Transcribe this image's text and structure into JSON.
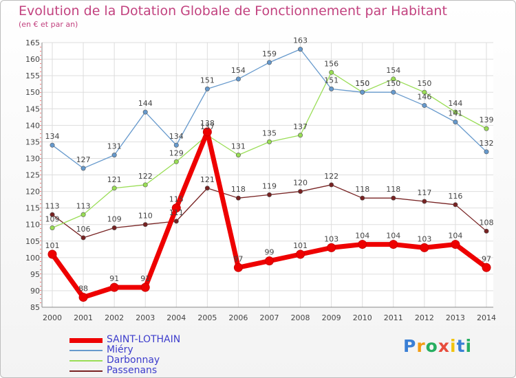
{
  "chart_data": {
    "type": "line",
    "title": "Evolution de la Dotation Globale de Fonctionnement par Habitant",
    "subtitle": "(en € et par an)",
    "x": [
      "2000",
      "2001",
      "2002",
      "2003",
      "2004",
      "2005",
      "2006",
      "2007",
      "2008",
      "2009",
      "2010",
      "2011",
      "2012",
      "2013",
      "2014"
    ],
    "ylim": [
      85,
      165
    ],
    "yticks": [
      85,
      90,
      95,
      100,
      105,
      110,
      115,
      120,
      125,
      130,
      135,
      140,
      145,
      150,
      155,
      160,
      165
    ],
    "grid": true,
    "legend_position": "bottom-left",
    "series": [
      {
        "name": "SAINT-LOTHAIN",
        "color": "#ee0000",
        "values": [
          101,
          88,
          91,
          91,
          115,
          138,
          97,
          99,
          101,
          103,
          104,
          104,
          103,
          104,
          97
        ]
      },
      {
        "name": "Miéry",
        "color": "#6699cc",
        "values": [
          134,
          127,
          131,
          144,
          134,
          151,
          154,
          159,
          163,
          151,
          150,
          150,
          146,
          141,
          132
        ]
      },
      {
        "name": "Darbonnay",
        "color": "#99dd55",
        "values": [
          109,
          113,
          121,
          122,
          129,
          137,
          131,
          135,
          137,
          156,
          150,
          154,
          150,
          144,
          139
        ]
      },
      {
        "name": "Passenans",
        "color": "#772222",
        "values": [
          113,
          106,
          109,
          110,
          111,
          121,
          118,
          119,
          120,
          122,
          118,
          118,
          117,
          116,
          108
        ]
      }
    ]
  },
  "branding": {
    "logo_letters": [
      "P",
      "r",
      "o",
      "x",
      "i",
      "t",
      "i"
    ],
    "logo_colors": [
      "#3a7fd5",
      "#f39c12",
      "#27ae60",
      "#e74c3c",
      "#f1c40f",
      "#3a7fd5",
      "#27ae60"
    ]
  }
}
